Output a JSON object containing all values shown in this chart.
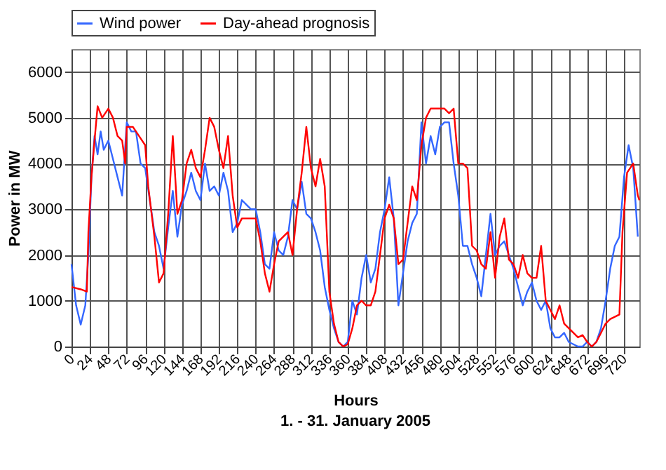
{
  "chart_data": {
    "type": "line",
    "xlabel": "Hours",
    "ylabel": "Power in MW",
    "annotations": [
      "1. - 31. January 2005"
    ],
    "xlim": [
      0,
      740
    ],
    "xticks": [
      0,
      24,
      48,
      72,
      96,
      120,
      144,
      168,
      192,
      216,
      240,
      264,
      288,
      312,
      336,
      360,
      384,
      408,
      432,
      456,
      480,
      504,
      528,
      552,
      576,
      600,
      624,
      648,
      672,
      696,
      720
    ],
    "ylim": [
      0,
      6500
    ],
    "yticks": [
      0,
      1000,
      2000,
      3000,
      4000,
      5000,
      6000
    ],
    "grid": true,
    "legend": "top",
    "marker": "none",
    "line_style": "solid",
    "series": [
      {
        "name": "Wind power",
        "color": "#3366ff",
        "x": [
          0,
          6,
          12,
          18,
          22,
          26,
          30,
          34,
          38,
          42,
          48,
          54,
          60,
          66,
          72,
          78,
          84,
          90,
          96,
          102,
          108,
          114,
          120,
          126,
          132,
          138,
          144,
          150,
          156,
          162,
          168,
          174,
          180,
          186,
          192,
          198,
          204,
          210,
          216,
          222,
          228,
          234,
          240,
          246,
          252,
          258,
          264,
          270,
          276,
          282,
          288,
          294,
          300,
          306,
          312,
          318,
          324,
          330,
          336,
          342,
          348,
          354,
          360,
          366,
          372,
          378,
          384,
          390,
          396,
          402,
          408,
          414,
          420,
          426,
          432,
          438,
          444,
          450,
          456,
          462,
          468,
          474,
          480,
          486,
          492,
          498,
          504,
          510,
          516,
          522,
          528,
          534,
          540,
          546,
          552,
          558,
          564,
          570,
          576,
          582,
          588,
          594,
          600,
          606,
          612,
          618,
          624,
          630,
          636,
          642,
          648,
          654,
          660,
          666,
          672,
          678,
          684,
          690,
          696,
          702,
          708,
          714,
          720,
          726,
          732,
          738
        ],
        "values": [
          1800,
          900,
          480,
          900,
          2000,
          3700,
          4600,
          4200,
          4700,
          4300,
          4500,
          4100,
          3700,
          3300,
          4900,
          4700,
          4700,
          4000,
          3900,
          3200,
          2500,
          2200,
          1700,
          2600,
          3400,
          2400,
          3100,
          3400,
          3800,
          3400,
          3200,
          4000,
          3400,
          3500,
          3300,
          3800,
          3400,
          2500,
          2700,
          3200,
          3100,
          3000,
          3000,
          2500,
          1800,
          1700,
          2500,
          2100,
          2000,
          2400,
          3200,
          3000,
          3600,
          2900,
          2800,
          2500,
          2100,
          1300,
          800,
          400,
          100,
          0,
          100,
          1000,
          700,
          1500,
          2000,
          1400,
          1700,
          2500,
          3000,
          3700,
          2800,
          900,
          1600,
          2300,
          2700,
          2900,
          4900,
          4000,
          4600,
          4200,
          4800,
          4900,
          4900,
          4000,
          3300,
          2200,
          2200,
          1800,
          1500,
          1100,
          2000,
          2900,
          2000,
          2200,
          2300,
          2000,
          1700,
          1300,
          900,
          1200,
          1400,
          1000,
          800,
          1000,
          400,
          200,
          200,
          300,
          100,
          50,
          0,
          0,
          100,
          0,
          100,
          400,
          1000,
          1700,
          2200,
          2400,
          3700,
          4400,
          3900,
          2400
        ]
      },
      {
        "name": "Day-ahead prognosis",
        "color": "#ff0000",
        "x": [
          0,
          12,
          20,
          22,
          26,
          30,
          34,
          40,
          48,
          54,
          60,
          66,
          70,
          72,
          80,
          88,
          96,
          100,
          108,
          114,
          120,
          126,
          132,
          138,
          144,
          150,
          156,
          162,
          168,
          174,
          180,
          186,
          192,
          198,
          204,
          210,
          216,
          222,
          228,
          234,
          240,
          246,
          252,
          258,
          264,
          270,
          276,
          282,
          288,
          294,
          300,
          306,
          312,
          318,
          324,
          330,
          336,
          342,
          348,
          354,
          360,
          366,
          372,
          378,
          384,
          390,
          396,
          402,
          408,
          414,
          420,
          426,
          432,
          438,
          444,
          450,
          456,
          462,
          468,
          474,
          480,
          486,
          492,
          498,
          504,
          510,
          516,
          522,
          528,
          534,
          540,
          546,
          552,
          558,
          564,
          570,
          576,
          582,
          588,
          594,
          600,
          606,
          612,
          618,
          624,
          630,
          636,
          642,
          648,
          654,
          660,
          666,
          672,
          678,
          684,
          690,
          696,
          702,
          708,
          714,
          718,
          724,
          732,
          738,
          740
        ],
        "values": [
          1300,
          1250,
          1200,
          2500,
          3700,
          4500,
          5250,
          5000,
          5200,
          5000,
          4600,
          4500,
          4000,
          4800,
          4800,
          4600,
          4400,
          3500,
          2400,
          1400,
          1600,
          2900,
          4600,
          2900,
          3200,
          4000,
          4300,
          3900,
          3700,
          4300,
          5000,
          4800,
          4300,
          3900,
          4600,
          3300,
          2600,
          2800,
          2800,
          2800,
          2800,
          2300,
          1600,
          1200,
          1800,
          2300,
          2400,
          2500,
          2000,
          3000,
          3800,
          4800,
          3900,
          3500,
          4100,
          3500,
          1200,
          500,
          100,
          0,
          50,
          400,
          900,
          1000,
          900,
          900,
          1200,
          2000,
          2800,
          3100,
          2800,
          1800,
          1900,
          2700,
          3500,
          3200,
          4400,
          5000,
          5200,
          5200,
          5200,
          5200,
          5100,
          5200,
          4000,
          4000,
          3900,
          2200,
          2100,
          1800,
          1700,
          2500,
          1500,
          2400,
          2800,
          1900,
          1800,
          1500,
          2000,
          1600,
          1500,
          1500,
          2200,
          1000,
          800,
          600,
          900,
          500,
          400,
          300,
          200,
          250,
          100,
          0,
          100,
          300,
          500,
          600,
          650,
          700,
          2500,
          3800,
          4000,
          3300,
          3200
        ]
      }
    ]
  }
}
